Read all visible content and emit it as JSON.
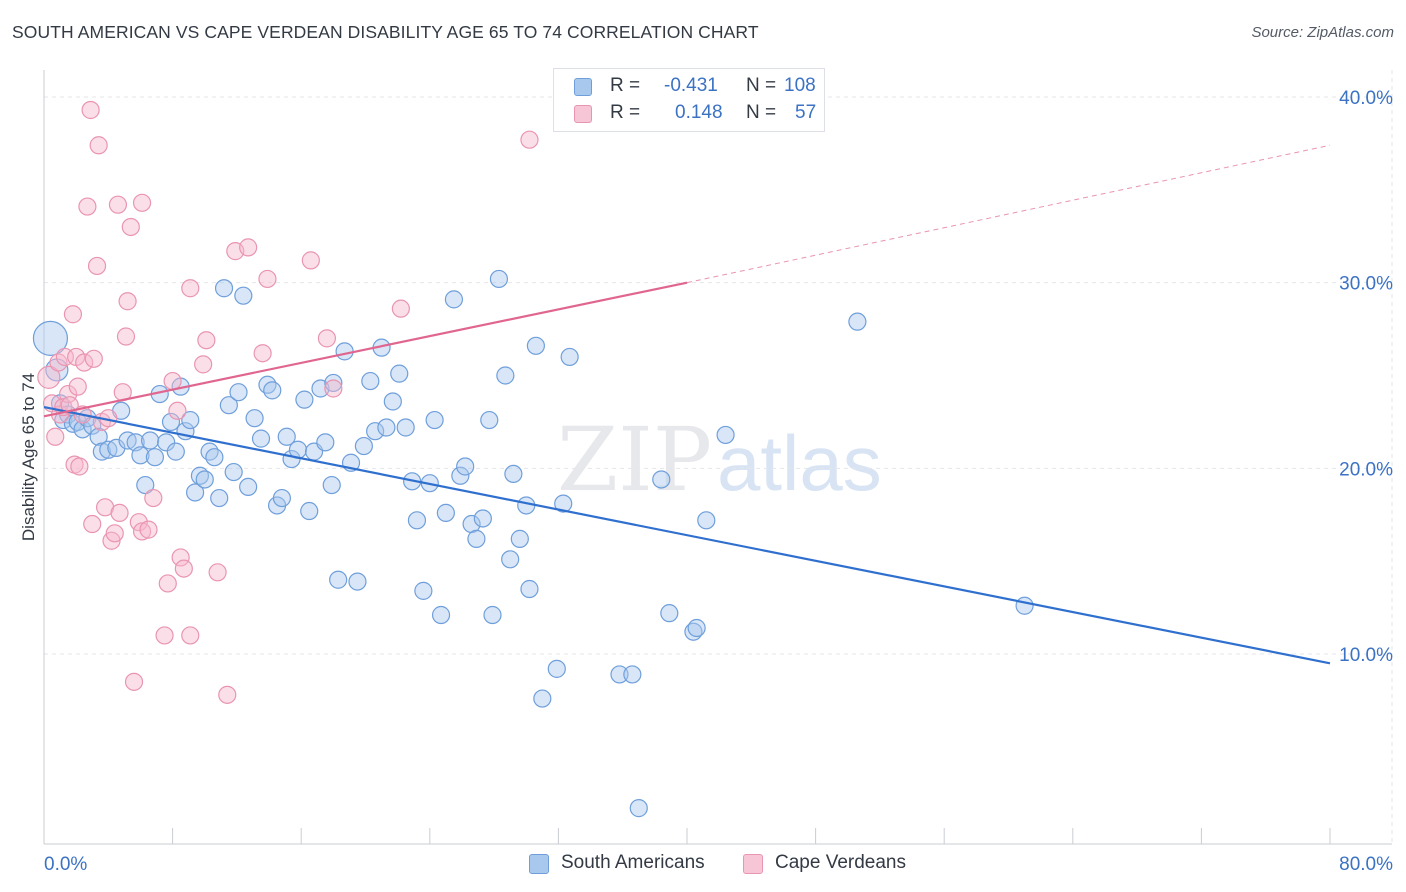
{
  "title": "SOUTH AMERICAN VS CAPE VERDEAN DISABILITY AGE 65 TO 74 CORRELATION CHART",
  "source": "Source: ZipAtlas.com",
  "watermark": {
    "zip": "ZIP",
    "atlas": "atlas"
  },
  "legend": {
    "r_label": "R =",
    "n_label": "N =",
    "rows": [
      {
        "r": "-0.431",
        "n": "108"
      },
      {
        "r": "0.148",
        "n": "57"
      }
    ]
  },
  "chart_data": {
    "type": "scatter",
    "title": "SOUTH AMERICAN VS CAPE VERDEAN DISABILITY AGE 65 TO 74 CORRELATION CHART",
    "ylabel": "Disability Age 65 to 74",
    "xlabel": "",
    "xlim": [
      0,
      80
    ],
    "ylim": [
      0,
      43
    ],
    "x_tick_labels": [
      {
        "value": 0,
        "label": "0.0%"
      },
      {
        "value": 80,
        "label": "80.0%"
      }
    ],
    "y_tick_labels": [
      {
        "value": 10,
        "label": "10.0%"
      },
      {
        "value": 20,
        "label": "20.0%"
      },
      {
        "value": 30,
        "label": "30.0%"
      },
      {
        "value": 40,
        "label": "40.0%"
      }
    ],
    "grid": true,
    "legend_position": "top-center",
    "colors": {
      "south_americans_fill": "#a9c8ee",
      "south_americans_stroke": "#6f9fdb",
      "south_americans_line": "#2f6fce",
      "cape_verdeans_fill": "#f6b9cd",
      "cape_verdeans_stroke": "#e995b2",
      "cape_verdeans_line": "#e0668f",
      "axis_label": "#3b72c4"
    },
    "series": [
      {
        "name": "South Americans",
        "r": -0.431,
        "n": 108,
        "trend": {
          "x": [
            0,
            80
          ],
          "y": [
            23.3,
            9.5
          ]
        },
        "points": [
          {
            "x": 0.4,
            "y": 27.0,
            "s": 3
          },
          {
            "x": 0.8,
            "y": 25.3,
            "s": 2
          },
          {
            "x": 1.0,
            "y": 23.5,
            "s": 1
          },
          {
            "x": 1.2,
            "y": 22.6,
            "s": 1
          },
          {
            "x": 1.5,
            "y": 22.9,
            "s": 1
          },
          {
            "x": 1.8,
            "y": 22.4,
            "s": 1
          },
          {
            "x": 2.1,
            "y": 22.5,
            "s": 1
          },
          {
            "x": 2.4,
            "y": 22.1,
            "s": 1
          },
          {
            "x": 2.7,
            "y": 22.7,
            "s": 1
          },
          {
            "x": 3.0,
            "y": 22.3,
            "s": 1
          },
          {
            "x": 3.4,
            "y": 21.7,
            "s": 1
          },
          {
            "x": 3.6,
            "y": 20.9,
            "s": 1
          },
          {
            "x": 4.0,
            "y": 21.0,
            "s": 1
          },
          {
            "x": 4.5,
            "y": 21.1,
            "s": 1
          },
          {
            "x": 4.8,
            "y": 23.1,
            "s": 1
          },
          {
            "x": 5.2,
            "y": 21.5,
            "s": 1
          },
          {
            "x": 5.7,
            "y": 21.4,
            "s": 1
          },
          {
            "x": 6.0,
            "y": 20.7,
            "s": 1
          },
          {
            "x": 6.3,
            "y": 19.1,
            "s": 1
          },
          {
            "x": 6.6,
            "y": 21.5,
            "s": 1
          },
          {
            "x": 6.9,
            "y": 20.6,
            "s": 1
          },
          {
            "x": 7.2,
            "y": 24.0,
            "s": 1
          },
          {
            "x": 7.6,
            "y": 21.4,
            "s": 1
          },
          {
            "x": 7.9,
            "y": 22.5,
            "s": 1
          },
          {
            "x": 8.2,
            "y": 20.9,
            "s": 1
          },
          {
            "x": 8.5,
            "y": 24.4,
            "s": 1
          },
          {
            "x": 8.8,
            "y": 22.0,
            "s": 1
          },
          {
            "x": 9.1,
            "y": 22.6,
            "s": 1
          },
          {
            "x": 9.4,
            "y": 18.7,
            "s": 1
          },
          {
            "x": 9.7,
            "y": 19.6,
            "s": 1
          },
          {
            "x": 10.0,
            "y": 19.4,
            "s": 1
          },
          {
            "x": 10.3,
            "y": 20.9,
            "s": 1
          },
          {
            "x": 10.6,
            "y": 20.6,
            "s": 1
          },
          {
            "x": 10.9,
            "y": 18.4,
            "s": 1
          },
          {
            "x": 11.2,
            "y": 29.7,
            "s": 1
          },
          {
            "x": 11.5,
            "y": 23.4,
            "s": 1
          },
          {
            "x": 11.8,
            "y": 19.8,
            "s": 1
          },
          {
            "x": 12.1,
            "y": 24.1,
            "s": 1
          },
          {
            "x": 12.4,
            "y": 29.3,
            "s": 1
          },
          {
            "x": 12.7,
            "y": 19.0,
            "s": 1
          },
          {
            "x": 13.1,
            "y": 22.7,
            "s": 1
          },
          {
            "x": 13.5,
            "y": 21.6,
            "s": 1
          },
          {
            "x": 13.9,
            "y": 24.5,
            "s": 1
          },
          {
            "x": 14.2,
            "y": 24.2,
            "s": 1
          },
          {
            "x": 14.5,
            "y": 18.0,
            "s": 1
          },
          {
            "x": 14.8,
            "y": 18.4,
            "s": 1
          },
          {
            "x": 15.1,
            "y": 21.7,
            "s": 1
          },
          {
            "x": 15.4,
            "y": 20.5,
            "s": 1
          },
          {
            "x": 15.8,
            "y": 21.0,
            "s": 1
          },
          {
            "x": 16.2,
            "y": 23.7,
            "s": 1
          },
          {
            "x": 16.5,
            "y": 17.7,
            "s": 1
          },
          {
            "x": 16.8,
            "y": 20.9,
            "s": 1
          },
          {
            "x": 17.2,
            "y": 24.3,
            "s": 1
          },
          {
            "x": 17.5,
            "y": 21.4,
            "s": 1
          },
          {
            "x": 17.9,
            "y": 19.1,
            "s": 1
          },
          {
            "x": 18.3,
            "y": 14.0,
            "s": 1
          },
          {
            "x": 18.0,
            "y": 24.6,
            "s": 1
          },
          {
            "x": 18.7,
            "y": 26.3,
            "s": 1
          },
          {
            "x": 19.1,
            "y": 20.3,
            "s": 1
          },
          {
            "x": 19.5,
            "y": 13.9,
            "s": 1
          },
          {
            "x": 19.9,
            "y": 21.2,
            "s": 1
          },
          {
            "x": 20.3,
            "y": 24.7,
            "s": 1
          },
          {
            "x": 20.6,
            "y": 22.0,
            "s": 1
          },
          {
            "x": 21.0,
            "y": 26.5,
            "s": 1
          },
          {
            "x": 21.3,
            "y": 22.2,
            "s": 1
          },
          {
            "x": 21.7,
            "y": 23.6,
            "s": 1
          },
          {
            "x": 22.1,
            "y": 25.1,
            "s": 1
          },
          {
            "x": 22.5,
            "y": 22.2,
            "s": 1
          },
          {
            "x": 22.9,
            "y": 19.3,
            "s": 1
          },
          {
            "x": 23.2,
            "y": 17.2,
            "s": 1
          },
          {
            "x": 23.6,
            "y": 13.4,
            "s": 1
          },
          {
            "x": 24.0,
            "y": 19.2,
            "s": 1
          },
          {
            "x": 24.3,
            "y": 22.6,
            "s": 1
          },
          {
            "x": 24.7,
            "y": 12.1,
            "s": 1
          },
          {
            "x": 25.0,
            "y": 17.6,
            "s": 1
          },
          {
            "x": 25.5,
            "y": 29.1,
            "s": 1
          },
          {
            "x": 25.9,
            "y": 19.6,
            "s": 1
          },
          {
            "x": 26.2,
            "y": 20.1,
            "s": 1
          },
          {
            "x": 26.6,
            "y": 17.0,
            "s": 1
          },
          {
            "x": 26.9,
            "y": 16.2,
            "s": 1
          },
          {
            "x": 27.3,
            "y": 17.3,
            "s": 1
          },
          {
            "x": 27.7,
            "y": 22.6,
            "s": 1
          },
          {
            "x": 27.9,
            "y": 12.1,
            "s": 1
          },
          {
            "x": 28.3,
            "y": 30.2,
            "s": 1
          },
          {
            "x": 28.7,
            "y": 25.0,
            "s": 1
          },
          {
            "x": 29.0,
            "y": 15.1,
            "s": 1
          },
          {
            "x": 29.2,
            "y": 19.7,
            "s": 1
          },
          {
            "x": 29.6,
            "y": 16.2,
            "s": 1
          },
          {
            "x": 30.0,
            "y": 18.0,
            "s": 1
          },
          {
            "x": 30.2,
            "y": 13.5,
            "s": 1
          },
          {
            "x": 30.6,
            "y": 26.6,
            "s": 1
          },
          {
            "x": 31.0,
            "y": 7.6,
            "s": 1
          },
          {
            "x": 31.9,
            "y": 9.2,
            "s": 1
          },
          {
            "x": 32.3,
            "y": 18.1,
            "s": 1
          },
          {
            "x": 32.7,
            "y": 26.0,
            "s": 1
          },
          {
            "x": 35.8,
            "y": 8.9,
            "s": 1
          },
          {
            "x": 36.6,
            "y": 8.9,
            "s": 1
          },
          {
            "x": 37.0,
            "y": 1.7,
            "s": 1
          },
          {
            "x": 38.4,
            "y": 19.4,
            "s": 1
          },
          {
            "x": 38.9,
            "y": 12.2,
            "s": 1
          },
          {
            "x": 40.4,
            "y": 11.2,
            "s": 1
          },
          {
            "x": 40.6,
            "y": 11.4,
            "s": 1
          },
          {
            "x": 41.2,
            "y": 17.2,
            "s": 1
          },
          {
            "x": 42.4,
            "y": 21.8,
            "s": 1
          },
          {
            "x": 50.6,
            "y": 27.9,
            "s": 1
          },
          {
            "x": 61.0,
            "y": 12.6,
            "s": 1
          }
        ]
      },
      {
        "name": "Cape Verdeans",
        "r": 0.148,
        "n": 57,
        "trend": {
          "x": [
            0,
            40
          ],
          "y": [
            22.8,
            30.0
          ],
          "dashed_to": {
            "x": 80,
            "y": 37.4
          }
        },
        "points": [
          {
            "x": 0.3,
            "y": 24.9,
            "s": 2
          },
          {
            "x": 0.5,
            "y": 23.5,
            "s": 1
          },
          {
            "x": 0.7,
            "y": 21.7,
            "s": 1
          },
          {
            "x": 0.9,
            "y": 25.7,
            "s": 1
          },
          {
            "x": 1.0,
            "y": 22.9,
            "s": 1
          },
          {
            "x": 1.2,
            "y": 23.3,
            "s": 1
          },
          {
            "x": 1.3,
            "y": 26.0,
            "s": 1
          },
          {
            "x": 1.5,
            "y": 24.0,
            "s": 1
          },
          {
            "x": 1.6,
            "y": 23.4,
            "s": 1
          },
          {
            "x": 1.8,
            "y": 28.3,
            "s": 1
          },
          {
            "x": 1.9,
            "y": 20.2,
            "s": 1
          },
          {
            "x": 2.0,
            "y": 26.0,
            "s": 1
          },
          {
            "x": 2.1,
            "y": 24.4,
            "s": 1
          },
          {
            "x": 2.2,
            "y": 20.1,
            "s": 1
          },
          {
            "x": 2.4,
            "y": 22.9,
            "s": 1
          },
          {
            "x": 2.5,
            "y": 25.7,
            "s": 1
          },
          {
            "x": 2.7,
            "y": 34.1,
            "s": 1
          },
          {
            "x": 2.9,
            "y": 39.3,
            "s": 1
          },
          {
            "x": 3.0,
            "y": 17.0,
            "s": 1
          },
          {
            "x": 3.1,
            "y": 25.9,
            "s": 1
          },
          {
            "x": 3.3,
            "y": 30.9,
            "s": 1
          },
          {
            "x": 3.4,
            "y": 37.4,
            "s": 1
          },
          {
            "x": 3.6,
            "y": 22.5,
            "s": 1
          },
          {
            "x": 3.8,
            "y": 17.9,
            "s": 1
          },
          {
            "x": 4.0,
            "y": 22.7,
            "s": 1
          },
          {
            "x": 4.2,
            "y": 16.1,
            "s": 1
          },
          {
            "x": 4.4,
            "y": 16.5,
            "s": 1
          },
          {
            "x": 4.6,
            "y": 34.2,
            "s": 1
          },
          {
            "x": 4.7,
            "y": 17.6,
            "s": 1
          },
          {
            "x": 4.9,
            "y": 24.1,
            "s": 1
          },
          {
            "x": 5.1,
            "y": 27.1,
            "s": 1
          },
          {
            "x": 5.2,
            "y": 29.0,
            "s": 1
          },
          {
            "x": 5.4,
            "y": 33.0,
            "s": 1
          },
          {
            "x": 5.6,
            "y": 8.5,
            "s": 1
          },
          {
            "x": 5.9,
            "y": 17.1,
            "s": 1
          },
          {
            "x": 6.1,
            "y": 16.6,
            "s": 1
          },
          {
            "x": 6.1,
            "y": 34.3,
            "s": 1
          },
          {
            "x": 6.5,
            "y": 16.7,
            "s": 1
          },
          {
            "x": 6.8,
            "y": 18.4,
            "s": 1
          },
          {
            "x": 7.5,
            "y": 11.0,
            "s": 1
          },
          {
            "x": 7.7,
            "y": 13.8,
            "s": 1
          },
          {
            "x": 8.0,
            "y": 24.7,
            "s": 1
          },
          {
            "x": 8.3,
            "y": 23.1,
            "s": 1
          },
          {
            "x": 8.5,
            "y": 15.2,
            "s": 1
          },
          {
            "x": 8.7,
            "y": 14.6,
            "s": 1
          },
          {
            "x": 9.1,
            "y": 11.0,
            "s": 1
          },
          {
            "x": 9.1,
            "y": 29.7,
            "s": 1
          },
          {
            "x": 9.9,
            "y": 25.6,
            "s": 1
          },
          {
            "x": 10.1,
            "y": 26.9,
            "s": 1
          },
          {
            "x": 10.8,
            "y": 14.4,
            "s": 1
          },
          {
            "x": 11.4,
            "y": 7.8,
            "s": 1
          },
          {
            "x": 11.9,
            "y": 31.7,
            "s": 1
          },
          {
            "x": 12.7,
            "y": 31.9,
            "s": 1
          },
          {
            "x": 13.6,
            "y": 26.2,
            "s": 1
          },
          {
            "x": 13.9,
            "y": 30.2,
            "s": 1
          },
          {
            "x": 16.6,
            "y": 31.2,
            "s": 1
          },
          {
            "x": 17.6,
            "y": 27.0,
            "s": 1
          },
          {
            "x": 18.0,
            "y": 24.3,
            "s": 1
          },
          {
            "x": 22.2,
            "y": 28.6,
            "s": 1
          },
          {
            "x": 30.2,
            "y": 37.7,
            "s": 1
          }
        ]
      }
    ]
  },
  "bottom_legend": [
    {
      "label": "South Americans"
    },
    {
      "label": "Cape Verdeans"
    }
  ]
}
